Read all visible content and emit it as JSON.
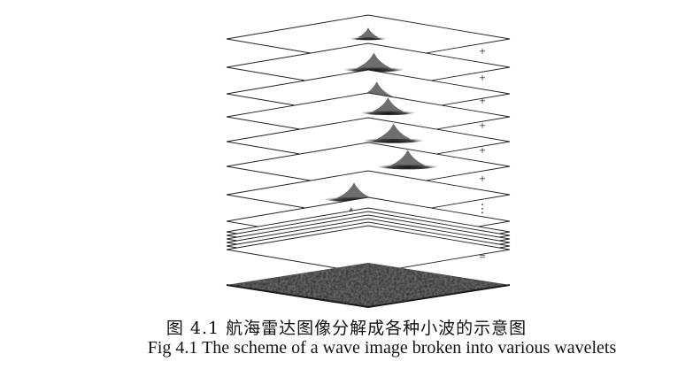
{
  "figure": {
    "operators": [
      "+",
      "+",
      "+",
      "+",
      "+",
      "+",
      "⋮",
      "="
    ],
    "wavelet_layers": [
      {
        "bumps": [
          {
            "u": 0.55,
            "v": 0.45,
            "size": 0.6
          }
        ]
      },
      {
        "bumps": [
          {
            "u": 0.52,
            "v": 0.52,
            "size": 1.0
          }
        ]
      },
      {
        "bumps": [
          {
            "u": 0.48,
            "v": 0.58,
            "size": 1.0
          }
        ]
      },
      {
        "bumps": [
          {
            "u": 0.7,
            "v": 0.44,
            "size": 0.9
          }
        ]
      },
      {
        "bumps": [
          {
            "u": 0.66,
            "v": 0.52,
            "size": 1.0
          }
        ]
      },
      {
        "bumps": [
          {
            "u": 0.68,
            "v": 0.6,
            "size": 1.0
          }
        ]
      },
      {
        "bumps": [
          {
            "u": 0.4,
            "v": 0.5,
            "size": 1.0
          }
        ]
      },
      {
        "bumps": [
          {
            "u": 0.4,
            "v": 0.48,
            "size": 1.1
          }
        ]
      }
    ],
    "stacked_sheets": 6,
    "result": "wave-surface"
  },
  "caption": {
    "chinese": "图  4.1  航海雷达图像分解成各种小波的示意图",
    "english": "Fig 4.1 The scheme of a wave image broken into various wavelets"
  }
}
